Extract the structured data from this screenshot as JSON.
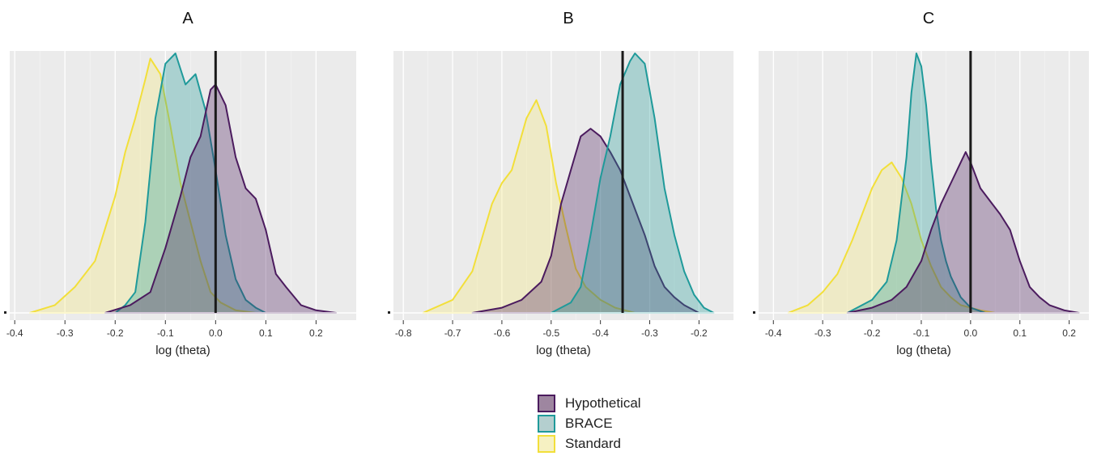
{
  "chart_data": [
    {
      "type": "area",
      "title": "A",
      "xlabel": "log (theta)",
      "ylabel": "",
      "xlim": [
        -0.41,
        0.28
      ],
      "xticks": [
        -0.4,
        -0.3,
        -0.2,
        -0.1,
        0.0,
        0.1,
        0.2
      ],
      "xtick_labels": [
        "-0.4",
        "-0.3",
        "-0.2",
        "-0.1",
        "0.0",
        "0.1",
        "0.2"
      ],
      "ylim": [
        0,
        1.0
      ],
      "reference_line_x": 0.0,
      "grid": true,
      "series": [
        {
          "name": "Standard",
          "x": [
            -0.37,
            -0.32,
            -0.28,
            -0.24,
            -0.2,
            -0.18,
            -0.16,
            -0.14,
            -0.13,
            -0.11,
            -0.09,
            -0.07,
            -0.05,
            -0.03,
            -0.01,
            0.01,
            0.04,
            0.08
          ],
          "y": [
            0.0,
            0.03,
            0.1,
            0.2,
            0.45,
            0.62,
            0.75,
            0.9,
            0.98,
            0.92,
            0.72,
            0.5,
            0.35,
            0.2,
            0.08,
            0.04,
            0.01,
            0.0
          ]
        },
        {
          "name": "BRACE",
          "x": [
            -0.2,
            -0.18,
            -0.16,
            -0.14,
            -0.12,
            -0.1,
            -0.08,
            -0.06,
            -0.04,
            -0.02,
            0.0,
            0.02,
            0.04,
            0.06,
            0.08,
            0.1
          ],
          "y": [
            0.0,
            0.03,
            0.08,
            0.35,
            0.75,
            0.96,
            1.0,
            0.88,
            0.92,
            0.78,
            0.55,
            0.3,
            0.13,
            0.05,
            0.02,
            0.0
          ]
        },
        {
          "name": "Hypothetical",
          "x": [
            -0.22,
            -0.17,
            -0.13,
            -0.1,
            -0.07,
            -0.05,
            -0.03,
            -0.01,
            0.0,
            0.02,
            0.04,
            0.06,
            0.08,
            0.1,
            0.12,
            0.14,
            0.17,
            0.2,
            0.24
          ],
          "y": [
            0.0,
            0.03,
            0.08,
            0.25,
            0.45,
            0.6,
            0.68,
            0.86,
            0.88,
            0.8,
            0.6,
            0.48,
            0.44,
            0.32,
            0.15,
            0.1,
            0.03,
            0.01,
            0.0
          ]
        }
      ]
    },
    {
      "type": "area",
      "title": "B",
      "xlabel": "log (theta)",
      "ylabel": "",
      "xlim": [
        -0.82,
        -0.13
      ],
      "xticks": [
        -0.8,
        -0.7,
        -0.6,
        -0.5,
        -0.4,
        -0.3,
        -0.2
      ],
      "xtick_labels": [
        "-0.8",
        "-0.7",
        "-0.6",
        "-0.5",
        "-0.4",
        "-0.3",
        "-0.2"
      ],
      "ylim": [
        0,
        1.0
      ],
      "reference_line_x": -0.355,
      "grid": true,
      "series": [
        {
          "name": "Standard",
          "x": [
            -0.76,
            -0.7,
            -0.66,
            -0.62,
            -0.6,
            -0.58,
            -0.55,
            -0.53,
            -0.51,
            -0.49,
            -0.47,
            -0.45,
            -0.43,
            -0.4,
            -0.37,
            -0.33
          ],
          "y": [
            0.0,
            0.05,
            0.16,
            0.42,
            0.5,
            0.55,
            0.75,
            0.82,
            0.72,
            0.5,
            0.33,
            0.17,
            0.1,
            0.05,
            0.02,
            0.0
          ]
        },
        {
          "name": "Hypothetical",
          "x": [
            -0.66,
            -0.6,
            -0.56,
            -0.52,
            -0.5,
            -0.48,
            -0.46,
            -0.44,
            -0.42,
            -0.4,
            -0.38,
            -0.36,
            -0.34,
            -0.31,
            -0.29,
            -0.27,
            -0.25,
            -0.23,
            -0.2
          ],
          "y": [
            0.0,
            0.02,
            0.05,
            0.12,
            0.22,
            0.42,
            0.55,
            0.68,
            0.71,
            0.68,
            0.62,
            0.55,
            0.45,
            0.3,
            0.18,
            0.1,
            0.06,
            0.03,
            0.0
          ]
        },
        {
          "name": "BRACE",
          "x": [
            -0.5,
            -0.46,
            -0.44,
            -0.42,
            -0.4,
            -0.38,
            -0.36,
            -0.34,
            -0.33,
            -0.31,
            -0.29,
            -0.27,
            -0.25,
            -0.23,
            -0.21,
            -0.19,
            -0.17
          ],
          "y": [
            0.0,
            0.04,
            0.1,
            0.3,
            0.52,
            0.68,
            0.88,
            0.97,
            1.0,
            0.96,
            0.75,
            0.48,
            0.3,
            0.16,
            0.07,
            0.02,
            0.0
          ]
        }
      ]
    },
    {
      "type": "area",
      "title": "C",
      "xlabel": "log (theta)",
      "ylabel": "",
      "xlim": [
        -0.43,
        0.24
      ],
      "xticks": [
        -0.4,
        -0.3,
        -0.2,
        -0.1,
        0.0,
        0.1,
        0.2
      ],
      "xtick_labels": [
        "-0.4",
        "-0.3",
        "-0.2",
        "-0.1",
        "0.0",
        "0.1",
        "0.2"
      ],
      "ylim": [
        0,
        1.0
      ],
      "reference_line_x": 0.0,
      "grid": true,
      "series": [
        {
          "name": "Standard",
          "x": [
            -0.37,
            -0.33,
            -0.3,
            -0.27,
            -0.24,
            -0.22,
            -0.2,
            -0.18,
            -0.16,
            -0.14,
            -0.12,
            -0.1,
            -0.08,
            -0.06,
            -0.04,
            -0.02,
            0.0,
            0.02,
            0.05
          ],
          "y": [
            0.0,
            0.03,
            0.08,
            0.15,
            0.28,
            0.38,
            0.48,
            0.55,
            0.58,
            0.52,
            0.42,
            0.28,
            0.18,
            0.1,
            0.06,
            0.03,
            0.02,
            0.01,
            0.0
          ]
        },
        {
          "name": "BRACE",
          "x": [
            -0.25,
            -0.2,
            -0.17,
            -0.15,
            -0.13,
            -0.12,
            -0.11,
            -0.1,
            -0.09,
            -0.08,
            -0.07,
            -0.06,
            -0.05,
            -0.04,
            -0.02,
            0.0,
            0.03
          ],
          "y": [
            0.0,
            0.05,
            0.12,
            0.28,
            0.6,
            0.85,
            1.0,
            0.95,
            0.8,
            0.58,
            0.4,
            0.28,
            0.2,
            0.14,
            0.06,
            0.02,
            0.0
          ]
        },
        {
          "name": "Hypothetical",
          "x": [
            -0.25,
            -0.2,
            -0.16,
            -0.13,
            -0.1,
            -0.08,
            -0.06,
            -0.04,
            -0.02,
            -0.01,
            0.0,
            0.02,
            0.04,
            0.06,
            0.08,
            0.1,
            0.12,
            0.14,
            0.16,
            0.19,
            0.22
          ],
          "y": [
            0.0,
            0.02,
            0.05,
            0.1,
            0.2,
            0.32,
            0.42,
            0.5,
            0.58,
            0.62,
            0.58,
            0.48,
            0.43,
            0.38,
            0.32,
            0.2,
            0.1,
            0.06,
            0.03,
            0.01,
            0.0
          ]
        }
      ]
    }
  ],
  "legend": {
    "placement": "bottom-center",
    "items": [
      {
        "label": "Hypothetical",
        "fill": "#9e86a0",
        "stroke": "#4b1b5e"
      },
      {
        "label": "BRACE",
        "fill": "#b4cfcf",
        "stroke": "#1f9a9a"
      },
      {
        "label": "Standard",
        "fill": "#f6f1c2",
        "stroke": "#f2df3a"
      }
    ]
  },
  "colors": {
    "Hypothetical": {
      "fill": "#4b1b5e",
      "stroke": "#4b1b5e"
    },
    "BRACE": {
      "fill": "#239b98",
      "stroke": "#1f9a9a"
    },
    "Standard": {
      "fill": "#f5ea7a",
      "stroke": "#f2df3a"
    },
    "panel_background": "#ebebeb",
    "grid": "#ffffff",
    "reference_line": "#1a1a1a"
  }
}
